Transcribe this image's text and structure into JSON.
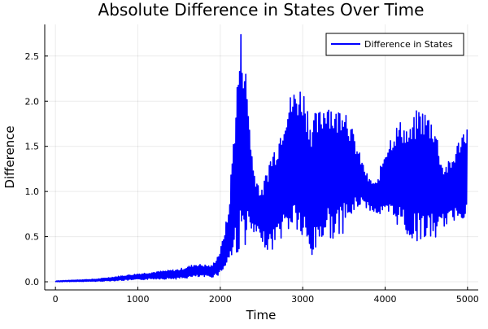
{
  "chart_data": {
    "type": "line",
    "title": "Absolute Difference in States Over Time",
    "xlabel": "Time",
    "ylabel": "Difference",
    "xlim": [
      -130,
      5130
    ],
    "ylim": [
      -0.09,
      2.85
    ],
    "xticks": [
      0,
      1000,
      2000,
      3000,
      4000,
      5000
    ],
    "xtick_labels": [
      "0",
      "1000",
      "2000",
      "3000",
      "4000",
      "5000"
    ],
    "yticks": [
      0,
      0.5,
      1.0,
      1.5,
      2.0,
      2.5
    ],
    "ytick_labels": [
      "0.0",
      "0.5",
      "1.0",
      "1.5",
      "2.0",
      "2.5"
    ],
    "grid": true,
    "legend": {
      "placement": "top-right",
      "entries": [
        "Difference in States"
      ]
    },
    "series": [
      {
        "name": "Difference in States",
        "color": "#0000ff",
        "oscillation_period": 30,
        "envelope_t": [
          0,
          500,
          1000,
          1200,
          1500,
          1700,
          1900,
          2000,
          2100,
          2200,
          2250,
          2300,
          2400,
          2500,
          2600,
          2700,
          2800,
          2900,
          3000,
          3100,
          3200,
          3300,
          3400,
          3500,
          3600,
          3700,
          3800,
          3900,
          4000,
          4100,
          4200,
          4300,
          4400,
          4500,
          4600,
          4700,
          4800,
          4900,
          5000
        ],
        "envelope_upper": [
          0.01,
          0.03,
          0.09,
          0.11,
          0.14,
          0.2,
          0.18,
          0.35,
          0.8,
          2.2,
          2.8,
          2.5,
          1.3,
          1.0,
          1.4,
          1.6,
          2.0,
          2.15,
          2.2,
          1.85,
          1.9,
          2.1,
          1.9,
          2.05,
          1.7,
          1.4,
          1.15,
          1.1,
          1.5,
          1.7,
          1.8,
          1.7,
          1.95,
          1.9,
          1.8,
          1.3,
          1.35,
          1.6,
          1.8
        ],
        "envelope_lower": [
          0.0,
          0.005,
          0.02,
          0.03,
          0.03,
          0.05,
          0.05,
          0.08,
          0.2,
          0.3,
          0.3,
          0.4,
          0.5,
          0.45,
          0.3,
          0.45,
          0.5,
          0.6,
          0.4,
          0.2,
          0.4,
          0.5,
          0.45,
          0.55,
          0.7,
          0.85,
          0.8,
          0.75,
          0.7,
          0.65,
          0.6,
          0.45,
          0.45,
          0.45,
          0.45,
          0.6,
          0.65,
          0.7,
          0.7
        ]
      }
    ]
  }
}
